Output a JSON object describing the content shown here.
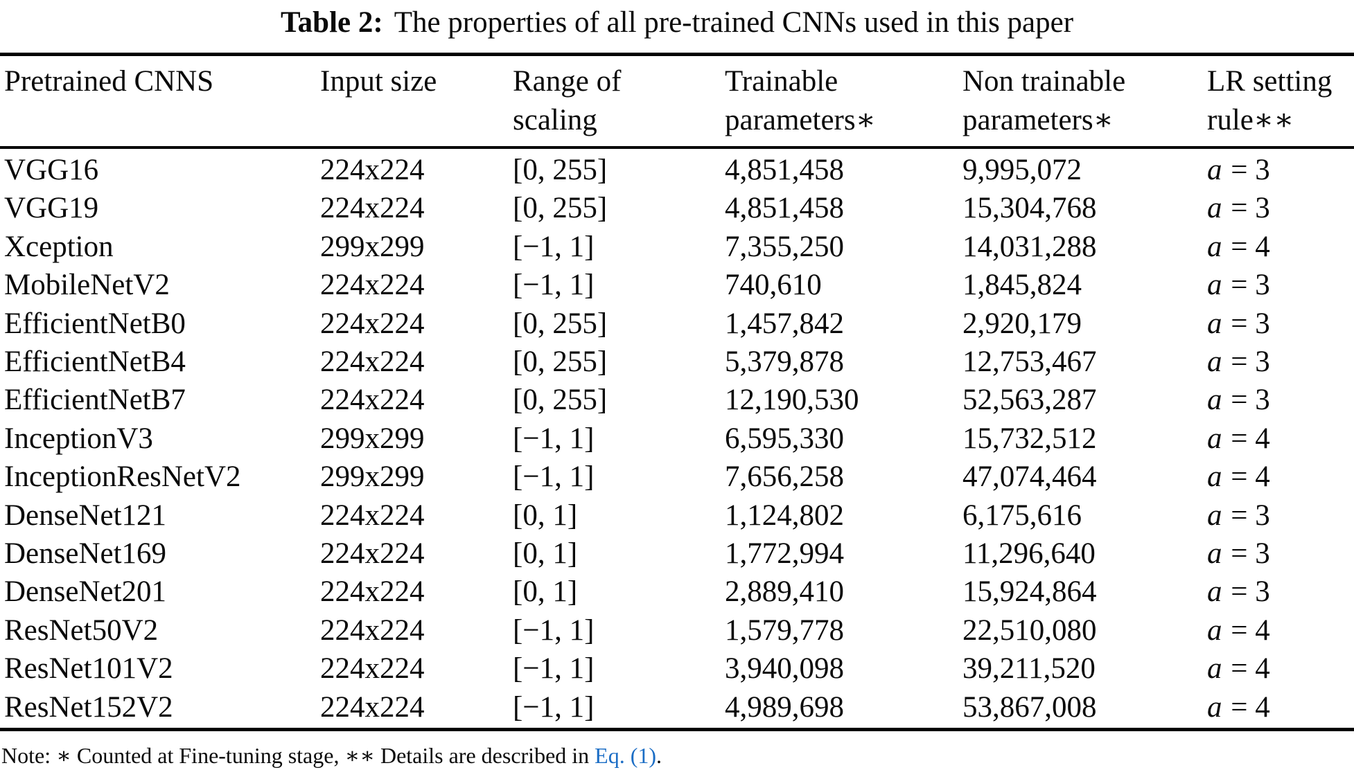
{
  "caption": {
    "label": "Table 2:",
    "text": "The properties of all pre-trained CNNs used in this paper"
  },
  "table": {
    "column_headers": [
      {
        "key": "model",
        "lines": [
          "Pretrained CNNS"
        ]
      },
      {
        "key": "input_size",
        "lines": [
          "Input size"
        ]
      },
      {
        "key": "scaling_range",
        "lines": [
          "Range of",
          "scaling"
        ]
      },
      {
        "key": "trainable_params",
        "lines": [
          "Trainable",
          "parameters∗"
        ]
      },
      {
        "key": "non_trainable_params",
        "lines": [
          "Non trainable",
          "parameters∗"
        ]
      },
      {
        "key": "lr_rule",
        "lines": [
          "LR setting",
          "rule∗∗"
        ]
      }
    ],
    "rows": [
      {
        "model": "VGG16",
        "input_size": "224x224",
        "scaling_range": "[0, 255]",
        "trainable_params": "4,851,458",
        "non_trainable_params": "9,995,072",
        "lr_var": "a",
        "lr_rest": "= 3"
      },
      {
        "model": "VGG19",
        "input_size": "224x224",
        "scaling_range": "[0, 255]",
        "trainable_params": "4,851,458",
        "non_trainable_params": "15,304,768",
        "lr_var": "a",
        "lr_rest": "= 3"
      },
      {
        "model": "Xception",
        "input_size": "299x299",
        "scaling_range": "[−1, 1]",
        "trainable_params": "7,355,250",
        "non_trainable_params": "14,031,288",
        "lr_var": "a",
        "lr_rest": "= 4"
      },
      {
        "model": "MobileNetV2",
        "input_size": "224x224",
        "scaling_range": "[−1, 1]",
        "trainable_params": "740,610",
        "non_trainable_params": "1,845,824",
        "lr_var": "a",
        "lr_rest": "= 3"
      },
      {
        "model": "EfficientNetB0",
        "input_size": "224x224",
        "scaling_range": "[0, 255]",
        "trainable_params": "1,457,842",
        "non_trainable_params": "2,920,179",
        "lr_var": "a",
        "lr_rest": "= 3"
      },
      {
        "model": "EfficientNetB4",
        "input_size": "224x224",
        "scaling_range": "[0, 255]",
        "trainable_params": "5,379,878",
        "non_trainable_params": "12,753,467",
        "lr_var": "a",
        "lr_rest": "= 3"
      },
      {
        "model": "EfficientNetB7",
        "input_size": "224x224",
        "scaling_range": "[0, 255]",
        "trainable_params": "12,190,530",
        "non_trainable_params": "52,563,287",
        "lr_var": "a",
        "lr_rest": "= 3"
      },
      {
        "model": "InceptionV3",
        "input_size": "299x299",
        "scaling_range": "[−1, 1]",
        "trainable_params": "6,595,330",
        "non_trainable_params": "15,732,512",
        "lr_var": "a",
        "lr_rest": "= 4"
      },
      {
        "model": "InceptionResNetV2",
        "input_size": "299x299",
        "scaling_range": "[−1, 1]",
        "trainable_params": "7,656,258",
        "non_trainable_params": "47,074,464",
        "lr_var": "a",
        "lr_rest": "= 4"
      },
      {
        "model": "DenseNet121",
        "input_size": "224x224",
        "scaling_range": "[0, 1]",
        "trainable_params": "1,124,802",
        "non_trainable_params": "6,175,616",
        "lr_var": "a",
        "lr_rest": "= 3"
      },
      {
        "model": "DenseNet169",
        "input_size": "224x224",
        "scaling_range": "[0, 1]",
        "trainable_params": "1,772,994",
        "non_trainable_params": "11,296,640",
        "lr_var": "a",
        "lr_rest": "= 3"
      },
      {
        "model": "DenseNet201",
        "input_size": "224x224",
        "scaling_range": "[0, 1]",
        "trainable_params": "2,889,410",
        "non_trainable_params": "15,924,864",
        "lr_var": "a",
        "lr_rest": "= 3"
      },
      {
        "model": "ResNet50V2",
        "input_size": "224x224",
        "scaling_range": "[−1, 1]",
        "trainable_params": "1,579,778",
        "non_trainable_params": "22,510,080",
        "lr_var": "a",
        "lr_rest": "= 4"
      },
      {
        "model": "ResNet101V2",
        "input_size": "224x224",
        "scaling_range": "[−1, 1]",
        "trainable_params": "3,940,098",
        "non_trainable_params": "39,211,520",
        "lr_var": "a",
        "lr_rest": "= 4"
      },
      {
        "model": "ResNet152V2",
        "input_size": "224x224",
        "scaling_range": "[−1, 1]",
        "trainable_params": "4,989,698",
        "non_trainable_params": "53,867,008",
        "lr_var": "a",
        "lr_rest": "= 4"
      }
    ]
  },
  "note": {
    "prefix": "Note: ∗ Counted at Fine-tuning stage, ∗∗ Details are described in ",
    "link": "Eq. (1)",
    "suffix": ".",
    "link_color": "#1b6dc5"
  }
}
